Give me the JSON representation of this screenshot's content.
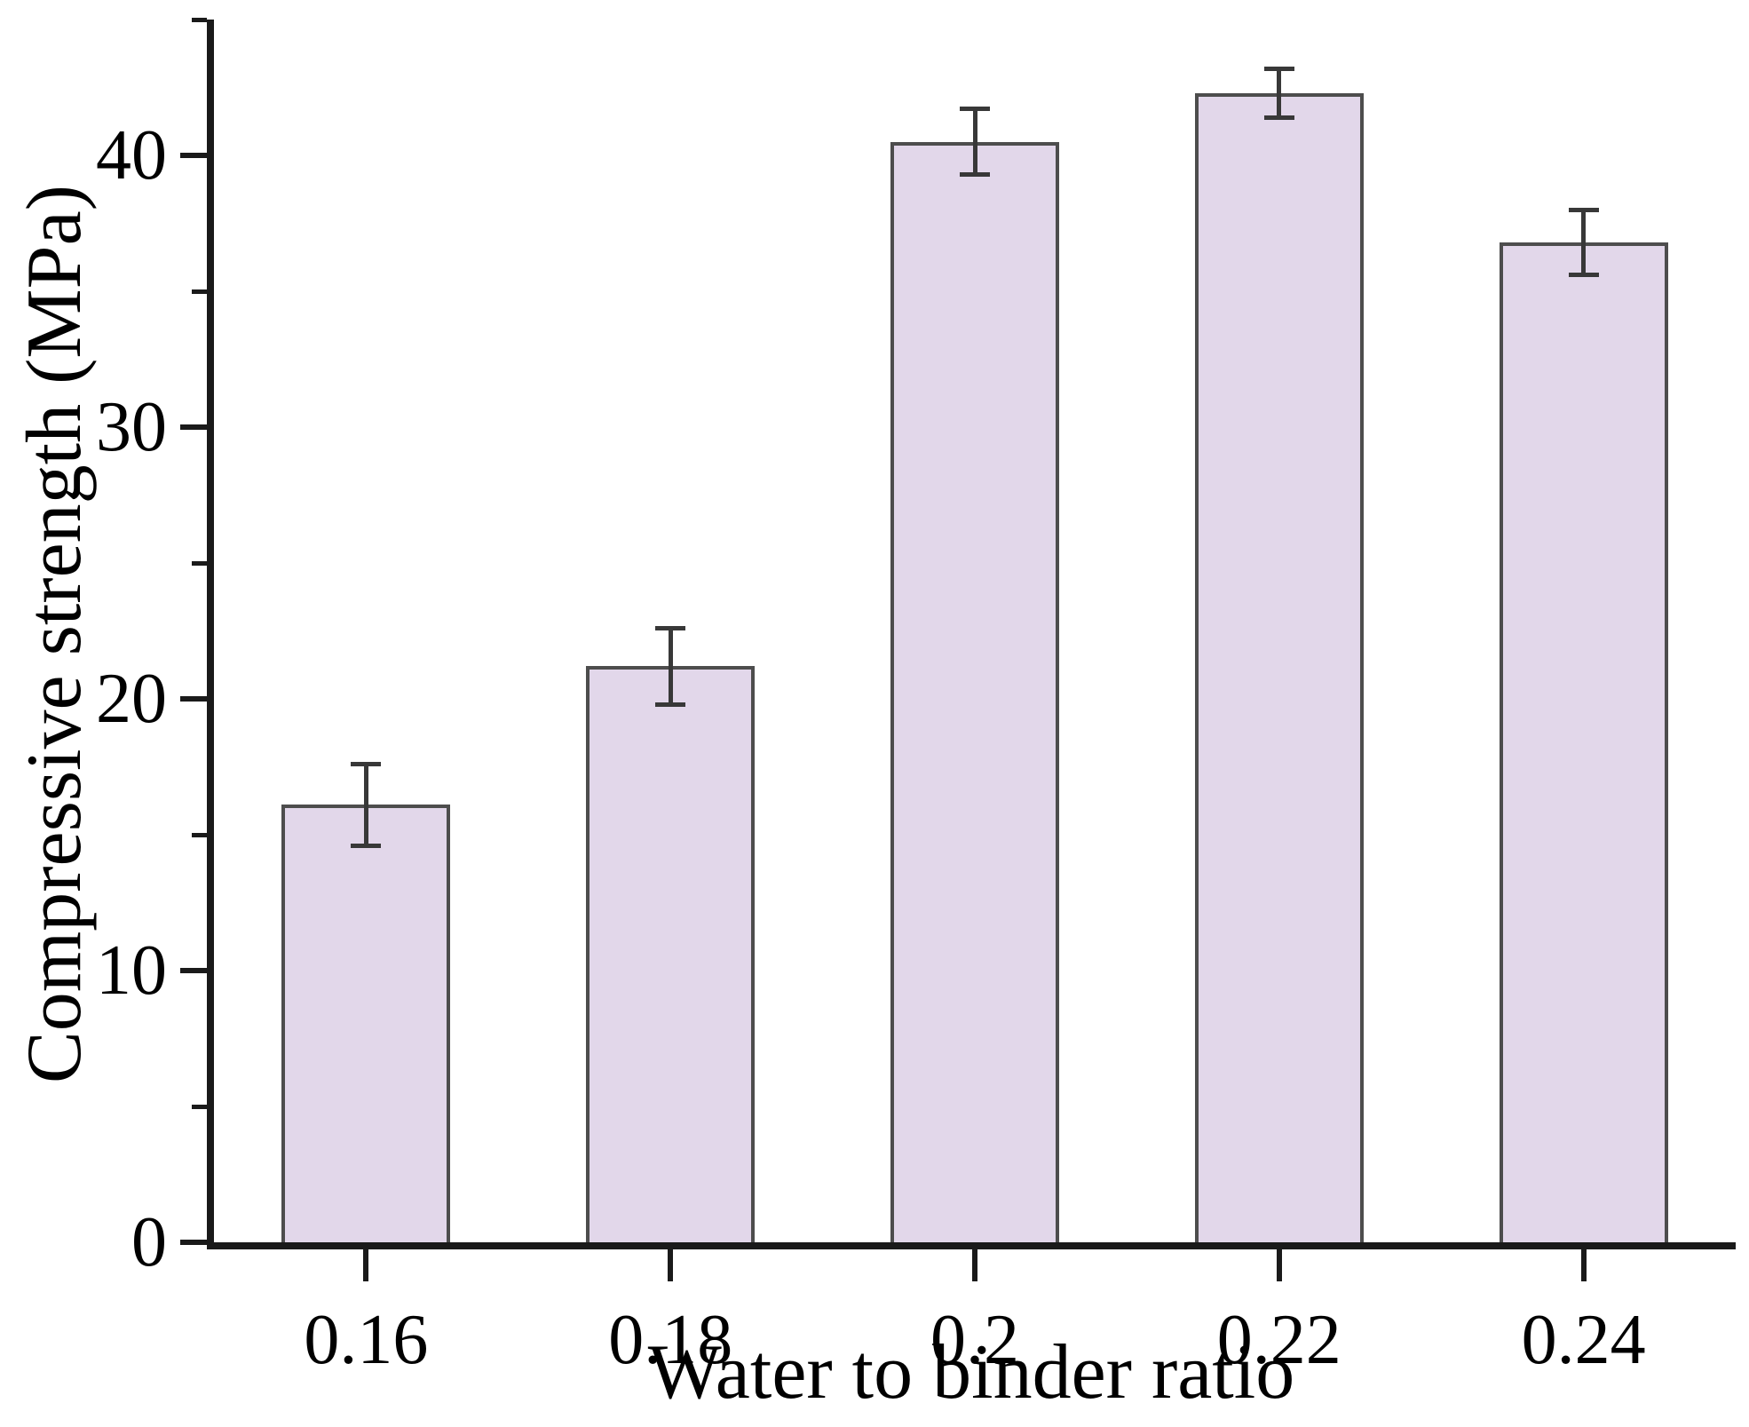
{
  "chart_data": {
    "type": "bar",
    "title": "",
    "xlabel": "Water to binder ratio",
    "ylabel": "Compressive strength (MPa)",
    "categories": [
      "0.16",
      "0.18",
      "0.2",
      "0.22",
      "0.24"
    ],
    "values": [
      16.1,
      21.2,
      40.5,
      42.3,
      36.8
    ],
    "error_bars": [
      1.5,
      1.4,
      1.2,
      0.9,
      1.2
    ],
    "ylim": [
      0,
      45
    ],
    "y_major_ticks": [
      0,
      10,
      20,
      30,
      40
    ],
    "y_minor_ticks": [
      5,
      15,
      25,
      35,
      45
    ],
    "grid": false,
    "legend": false,
    "colors": {
      "bar_fill": "#E2D7EA",
      "bar_edge": "#4D4D4D",
      "error_bar": "#383838",
      "axis": "#1A1A1A",
      "text": "#000000",
      "background": "#FFFFFF"
    }
  }
}
